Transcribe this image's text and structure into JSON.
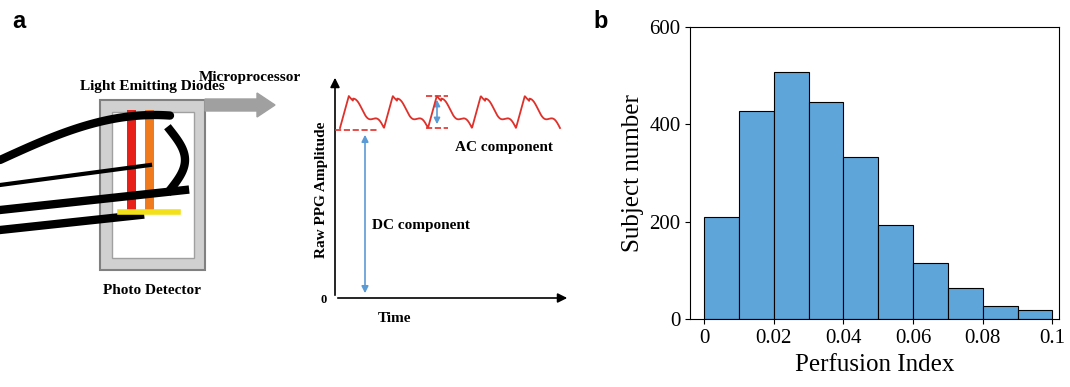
{
  "diagram": {
    "panel_label": "a",
    "labels": {
      "leds": "Light Emitting Diodes",
      "detector": "Photo Detector",
      "processor": "Microprocessor",
      "ac": "AC component",
      "dc": "DC component"
    },
    "axis": {
      "y_label": "Raw PPG Amplitude",
      "x_label": "Time",
      "origin_tick": 0
    }
  },
  "chart_data": {
    "type": "histogram",
    "panel_label": "b",
    "x_label": "Perfusion Index",
    "y_label": "Subject number",
    "bins": [
      0,
      0.01,
      0.02,
      0.03,
      0.04,
      0.05,
      0.06,
      0.07,
      0.08,
      0.09,
      0.1
    ],
    "counts": [
      210,
      428,
      508,
      447,
      333,
      193,
      115,
      65,
      28,
      20
    ],
    "color": "#5ea6d9",
    "xlim": [
      -0.004,
      0.102
    ],
    "xticks": [
      0,
      0.02,
      0.04,
      0.06,
      0.08,
      0.1
    ],
    "ylim": [
      0,
      600
    ],
    "yticks": [
      0,
      200,
      400,
      600
    ]
  }
}
